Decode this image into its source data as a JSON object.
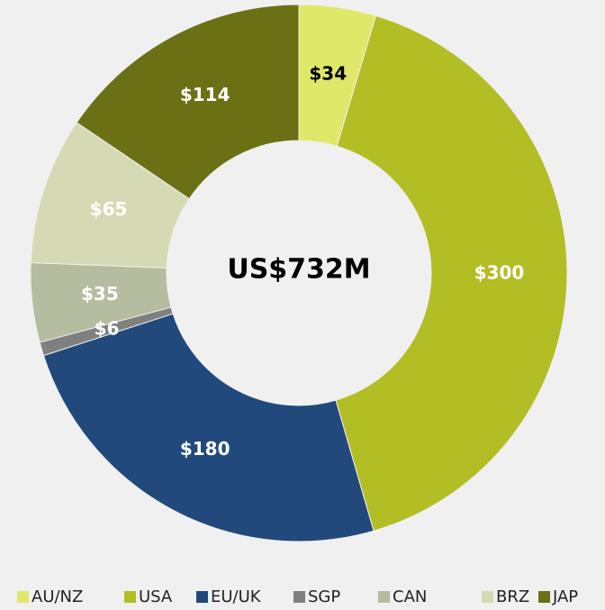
{
  "chart_data": {
    "type": "donut",
    "center_label": "US$732M",
    "categories": [
      "AU/NZ",
      "USA",
      "EU/UK",
      "SGP",
      "CAN",
      "BRZ",
      "JAP"
    ],
    "values": [
      34,
      300,
      180,
      6,
      35,
      65,
      114
    ],
    "value_labels": [
      "$34",
      "$300",
      "$180",
      "$6",
      "$35",
      "$65",
      "$114"
    ],
    "colors": [
      "#e0e86a",
      "#b3bd24",
      "#21497b",
      "#808080",
      "#b5bca0",
      "#d5dab5",
      "#6b7014"
    ],
    "label_colors": [
      "#000000",
      "#ffffff",
      "#ffffff",
      "#ffffff",
      "#ffffff",
      "#ffffff",
      "#ffffff"
    ],
    "legend": "bottom"
  }
}
